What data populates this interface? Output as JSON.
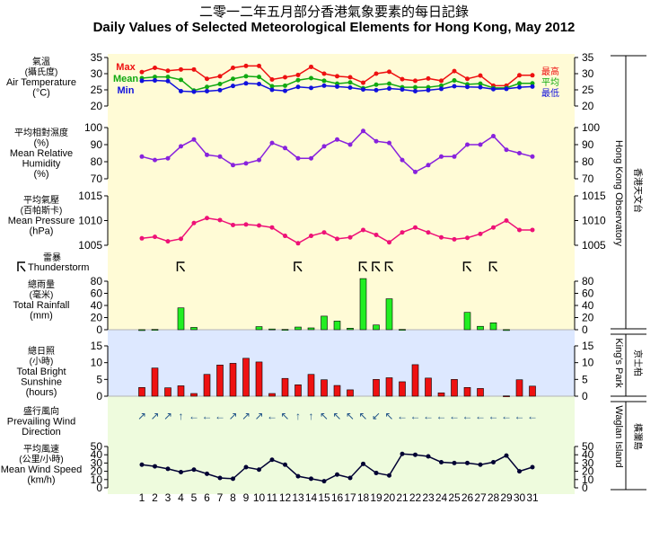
{
  "title_cn": "二零一二年五月部分香港氣象要素的每日記錄",
  "title_en": "Daily Values of Selected Meteorological Elements for Hong Kong, May 2012",
  "colors": {
    "max": "#ee1111",
    "mean": "#11aa11",
    "min": "#1111dd",
    "humidity": "#8822dd",
    "pressure": "#ee1177",
    "rain_bar": "#22ee22",
    "sun_bar": "#ee1111",
    "wind_arrow": "#225588",
    "wind_speed": "#000033",
    "bg_observatory": "#fffbd6",
    "bg_kings_park": "#dde8ff",
    "bg_waglan": "#eefbdd"
  },
  "labels": {
    "temperature": [
      "氣溫",
      "(攝氏度)",
      "Air Temperature",
      "(°C)"
    ],
    "humidity": [
      "平均相對濕度",
      "(%)",
      "Mean Relative",
      "Humidity",
      "(%)"
    ],
    "pressure": [
      "平均氣壓",
      "(百帕斯卡)",
      "Mean Pressure",
      "(hPa)"
    ],
    "thunderstorm_cn": "雷暴",
    "thunderstorm_en": "Thunderstorm",
    "rainfall": [
      "總雨量",
      "(毫米)",
      "Total Rainfall",
      "(mm)"
    ],
    "sunshine": [
      "總日照",
      "(小時)",
      "Total Bright",
      "Sunshine",
      "(hours)"
    ],
    "wind_dir": [
      "盛行風向",
      "Prevailing Wind",
      "Direction"
    ],
    "wind_speed": [
      "平均風速",
      "(公里/小時)",
      "Mean Wind Speed",
      "(km/h)"
    ]
  },
  "legend": {
    "max_en": "Max",
    "mean_en": "Mean",
    "min_en": "Min",
    "max_cn": "最高",
    "mean_cn": "平均",
    "min_cn": "最低"
  },
  "stations": {
    "observatory_en": "Hong Kong Observatory",
    "observatory_cn": "香港天文台",
    "kings_park_en": "King's Park",
    "kings_park_cn": "京士柏",
    "waglan_en": "Waglan Island",
    "waglan_cn": "橫瀾島"
  },
  "chart_data": {
    "type": "line",
    "x": [
      1,
      2,
      3,
      4,
      5,
      6,
      7,
      8,
      9,
      10,
      11,
      12,
      13,
      14,
      15,
      16,
      17,
      18,
      19,
      20,
      21,
      22,
      23,
      24,
      25,
      26,
      27,
      28,
      29,
      30,
      31
    ],
    "panels": {
      "temperature": {
        "ylim": [
          20,
          35
        ],
        "ticks": [
          20,
          25,
          30,
          35
        ],
        "series": [
          {
            "name": "Max",
            "values": [
              30.5,
              31.8,
              30.9,
              31.3,
              31.3,
              28.4,
              29.2,
              31.8,
              32.4,
              32.4,
              28.2,
              28.9,
              29.6,
              32.1,
              30.0,
              29.2,
              28.9,
              27.2,
              30.0,
              30.6,
              28.3,
              27.8,
              28.5,
              27.8,
              30.8,
              28.4,
              29.4,
              26.3,
              26.3,
              29.5,
              29.5
            ]
          },
          {
            "name": "Mean",
            "values": [
              28.6,
              29.0,
              29.0,
              28.1,
              24.8,
              25.9,
              26.8,
              28.4,
              29.2,
              29.0,
              26.1,
              26.3,
              28.0,
              28.6,
              27.8,
              26.9,
              27.3,
              25.5,
              26.6,
              26.9,
              25.8,
              25.8,
              25.8,
              26.3,
              27.9,
              26.7,
              26.9,
              25.6,
              25.6,
              27.0,
              27.0
            ]
          },
          {
            "name": "Min",
            "values": [
              27.8,
              27.9,
              27.7,
              24.6,
              24.4,
              24.6,
              24.9,
              26.2,
              27.0,
              26.8,
              25.0,
              24.7,
              25.9,
              25.6,
              26.3,
              26.0,
              25.7,
              25.1,
              24.9,
              25.4,
              25.1,
              24.6,
              24.9,
              25.3,
              26.1,
              25.9,
              25.8,
              25.2,
              25.3,
              25.8,
              26.0
            ]
          }
        ]
      },
      "humidity": {
        "ylim": [
          70,
          100
        ],
        "ticks": [
          70,
          80,
          90,
          100
        ],
        "values": [
          83,
          81,
          82,
          89,
          93,
          84,
          83,
          78,
          79,
          81,
          91,
          88,
          82,
          82,
          89,
          93,
          90,
          98,
          92,
          91,
          81,
          74,
          78,
          83,
          83,
          90,
          90,
          95,
          87,
          85,
          83
        ]
      },
      "pressure": {
        "ylim": [
          1005,
          1015
        ],
        "ticks": [
          1005,
          1010,
          1015
        ],
        "values": [
          1006.4,
          1006.7,
          1005.8,
          1006.3,
          1009.5,
          1010.5,
          1010.1,
          1009.1,
          1009.2,
          1009.0,
          1008.6,
          1006.9,
          1005.4,
          1006.9,
          1007.6,
          1006.3,
          1006.6,
          1008.1,
          1007.1,
          1005.6,
          1007.6,
          1008.6,
          1007.6,
          1006.6,
          1006.2,
          1006.5,
          1007.3,
          1008.6,
          1010.0,
          1008.1,
          1008.1
        ]
      },
      "thunderstorm_days": [
        4,
        13,
        18,
        19,
        20,
        26,
        28
      ],
      "rainfall": {
        "ylim": [
          0,
          80
        ],
        "ticks": [
          0,
          20,
          40,
          60,
          80
        ],
        "values": [
          0.1,
          0.5,
          0,
          36.0,
          3.8,
          0,
          0,
          0,
          0,
          5.1,
          1.2,
          0.5,
          4.4,
          3.0,
          22.4,
          14.2,
          2.5,
          84.3,
          7.8,
          51.0,
          0.5,
          0,
          0,
          0,
          0,
          28.6,
          5.6,
          11.4,
          0.2,
          0,
          0
        ]
      },
      "sunshine": {
        "ylim": [
          0,
          15
        ],
        "ticks": [
          0,
          5,
          10,
          15
        ],
        "values": [
          2.6,
          8.4,
          2.5,
          3.1,
          0.8,
          6.5,
          9.3,
          9.8,
          11.3,
          10.2,
          0.8,
          5.3,
          3.4,
          6.5,
          4.9,
          3.2,
          1.9,
          0,
          5.0,
          5.5,
          4.3,
          9.4,
          5.4,
          1.0,
          5.0,
          2.6,
          2.3,
          0,
          0.1,
          4.9,
          3.0
        ]
      },
      "wind_direction": {
        "note": "arrow glyphs as printed",
        "values": [
          "↗",
          "↗",
          "↗",
          "↑",
          "←",
          "←",
          "←",
          "↗",
          "↗",
          "↗",
          "←",
          "↖",
          "↑",
          "↑",
          "↖",
          "↖",
          "↖",
          "↖",
          "↙",
          "↖",
          "←",
          "←",
          "←",
          "←",
          "←",
          "←",
          "←",
          "←",
          "←",
          "←",
          "←"
        ]
      },
      "wind_speed": {
        "ylim": [
          0,
          50
        ],
        "ticks": [
          0,
          10,
          20,
          30,
          40,
          50
        ],
        "values": [
          28,
          26,
          23,
          19,
          22,
          17,
          12,
          11,
          25,
          22,
          34,
          28,
          14,
          11,
          8,
          16,
          12,
          29,
          18,
          15,
          41,
          40,
          38,
          31,
          30,
          30,
          28,
          31,
          39,
          20,
          25
        ]
      }
    }
  }
}
